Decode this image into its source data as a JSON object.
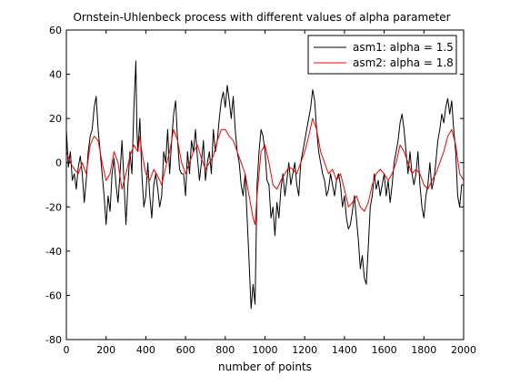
{
  "chart_data": {
    "type": "line",
    "title": "Ornstein-Uhlenbeck process with different values of alpha parameter",
    "xlabel": "number of points",
    "ylabel": "",
    "xlim": [
      0,
      2000
    ],
    "ylim": [
      -80,
      60
    ],
    "xticks": [
      0,
      200,
      400,
      600,
      800,
      1000,
      1200,
      1400,
      1600,
      1800,
      2000
    ],
    "yticks": [
      -80,
      -60,
      -40,
      -20,
      0,
      20,
      40,
      60
    ],
    "grid": false,
    "legend_position": "top-right",
    "series": [
      {
        "name": "asm1: alpha = 1.5",
        "color": "#000000",
        "points": [
          [
            0,
            15
          ],
          [
            10,
            -2
          ],
          [
            20,
            5
          ],
          [
            30,
            -8
          ],
          [
            40,
            -5
          ],
          [
            50,
            -12
          ],
          [
            60,
            -2
          ],
          [
            70,
            3
          ],
          [
            80,
            -5
          ],
          [
            90,
            -18
          ],
          [
            100,
            -8
          ],
          [
            110,
            5
          ],
          [
            120,
            12
          ],
          [
            130,
            15
          ],
          [
            140,
            25
          ],
          [
            150,
            30
          ],
          [
            160,
            15
          ],
          [
            170,
            5
          ],
          [
            180,
            -5
          ],
          [
            190,
            -15
          ],
          [
            200,
            -28
          ],
          [
            210,
            -15
          ],
          [
            220,
            -22
          ],
          [
            230,
            -5
          ],
          [
            240,
            2
          ],
          [
            250,
            -10
          ],
          [
            260,
            -18
          ],
          [
            270,
            -5
          ],
          [
            280,
            10
          ],
          [
            290,
            -8
          ],
          [
            300,
            -28
          ],
          [
            310,
            -10
          ],
          [
            320,
            5
          ],
          [
            330,
            -5
          ],
          [
            340,
            25
          ],
          [
            350,
            46
          ],
          [
            355,
            15
          ],
          [
            360,
            5
          ],
          [
            370,
            20
          ],
          [
            380,
            -5
          ],
          [
            390,
            -20
          ],
          [
            400,
            -15
          ],
          [
            410,
            0
          ],
          [
            420,
            -15
          ],
          [
            430,
            -25
          ],
          [
            440,
            -10
          ],
          [
            450,
            -5
          ],
          [
            460,
            -12
          ],
          [
            470,
            -20
          ],
          [
            480,
            -15
          ],
          [
            490,
            5
          ],
          [
            500,
            0
          ],
          [
            510,
            15
          ],
          [
            520,
            -5
          ],
          [
            530,
            10
          ],
          [
            540,
            22
          ],
          [
            550,
            28
          ],
          [
            560,
            10
          ],
          [
            570,
            -3
          ],
          [
            580,
            -5
          ],
          [
            590,
            -5
          ],
          [
            600,
            -15
          ],
          [
            610,
            5
          ],
          [
            620,
            -5
          ],
          [
            630,
            10
          ],
          [
            640,
            5
          ],
          [
            650,
            15
          ],
          [
            660,
            2
          ],
          [
            670,
            -8
          ],
          [
            680,
            0
          ],
          [
            690,
            10
          ],
          [
            700,
            -8
          ],
          [
            710,
            0
          ],
          [
            720,
            5
          ],
          [
            730,
            -5
          ],
          [
            740,
            15
          ],
          [
            750,
            5
          ],
          [
            760,
            10
          ],
          [
            770,
            20
          ],
          [
            780,
            28
          ],
          [
            790,
            32
          ],
          [
            800,
            25
          ],
          [
            810,
            35
          ],
          [
            820,
            28
          ],
          [
            830,
            20
          ],
          [
            840,
            30
          ],
          [
            850,
            15
          ],
          [
            860,
            5
          ],
          [
            870,
            0
          ],
          [
            880,
            -10
          ],
          [
            890,
            -15
          ],
          [
            900,
            -5
          ],
          [
            910,
            -25
          ],
          [
            920,
            -45
          ],
          [
            930,
            -66
          ],
          [
            940,
            -55
          ],
          [
            950,
            -64
          ],
          [
            960,
            -10
          ],
          [
            970,
            5
          ],
          [
            980,
            15
          ],
          [
            990,
            12
          ],
          [
            1000,
            5
          ],
          [
            1010,
            -8
          ],
          [
            1020,
            -10
          ],
          [
            1030,
            -25
          ],
          [
            1040,
            -20
          ],
          [
            1050,
            -33
          ],
          [
            1060,
            -18
          ],
          [
            1070,
            -25
          ],
          [
            1080,
            -12
          ],
          [
            1090,
            -5
          ],
          [
            1100,
            -15
          ],
          [
            1110,
            -8
          ],
          [
            1120,
            0
          ],
          [
            1130,
            -10
          ],
          [
            1140,
            -5
          ],
          [
            1150,
            0
          ],
          [
            1160,
            -10
          ],
          [
            1170,
            -15
          ],
          [
            1180,
            0
          ],
          [
            1190,
            5
          ],
          [
            1200,
            10
          ],
          [
            1210,
            15
          ],
          [
            1220,
            20
          ],
          [
            1230,
            25
          ],
          [
            1240,
            33
          ],
          [
            1250,
            28
          ],
          [
            1260,
            15
          ],
          [
            1270,
            5
          ],
          [
            1280,
            0
          ],
          [
            1290,
            -5
          ],
          [
            1300,
            -8
          ],
          [
            1310,
            -15
          ],
          [
            1320,
            -12
          ],
          [
            1330,
            -5
          ],
          [
            1340,
            -10
          ],
          [
            1350,
            -15
          ],
          [
            1360,
            -8
          ],
          [
            1370,
            -5
          ],
          [
            1380,
            -10
          ],
          [
            1390,
            -20
          ],
          [
            1400,
            -15
          ],
          [
            1410,
            -25
          ],
          [
            1420,
            -30
          ],
          [
            1430,
            -28
          ],
          [
            1440,
            -22
          ],
          [
            1450,
            -15
          ],
          [
            1460,
            -25
          ],
          [
            1470,
            -35
          ],
          [
            1480,
            -48
          ],
          [
            1490,
            -42
          ],
          [
            1500,
            -52
          ],
          [
            1510,
            -55
          ],
          [
            1520,
            -38
          ],
          [
            1530,
            -20
          ],
          [
            1540,
            -15
          ],
          [
            1550,
            -5
          ],
          [
            1560,
            -12
          ],
          [
            1570,
            -8
          ],
          [
            1580,
            -15
          ],
          [
            1590,
            -10
          ],
          [
            1600,
            -5
          ],
          [
            1610,
            -15
          ],
          [
            1620,
            -8
          ],
          [
            1630,
            -18
          ],
          [
            1640,
            -10
          ],
          [
            1650,
            0
          ],
          [
            1660,
            5
          ],
          [
            1670,
            10
          ],
          [
            1680,
            18
          ],
          [
            1690,
            22
          ],
          [
            1700,
            15
          ],
          [
            1710,
            5
          ],
          [
            1720,
            -5
          ],
          [
            1730,
            5
          ],
          [
            1740,
            -5
          ],
          [
            1750,
            -10
          ],
          [
            1760,
            -5
          ],
          [
            1770,
            5
          ],
          [
            1780,
            -10
          ],
          [
            1790,
            -20
          ],
          [
            1800,
            -25
          ],
          [
            1810,
            -15
          ],
          [
            1820,
            -10
          ],
          [
            1830,
            0
          ],
          [
            1840,
            -12
          ],
          [
            1850,
            -8
          ],
          [
            1860,
            0
          ],
          [
            1870,
            10
          ],
          [
            1880,
            15
          ],
          [
            1890,
            22
          ],
          [
            1900,
            18
          ],
          [
            1910,
            25
          ],
          [
            1920,
            29
          ],
          [
            1930,
            22
          ],
          [
            1940,
            28
          ],
          [
            1950,
            15
          ],
          [
            1960,
            5
          ],
          [
            1970,
            -15
          ],
          [
            1980,
            -20
          ],
          [
            1990,
            -10
          ],
          [
            2000,
            -10
          ]
        ]
      },
      {
        "name": "asm2: alpha = 1.8",
        "color": "#ff0000",
        "points": [
          [
            0,
            5
          ],
          [
            20,
            0
          ],
          [
            40,
            -3
          ],
          [
            60,
            -5
          ],
          [
            80,
            0
          ],
          [
            100,
            -5
          ],
          [
            120,
            8
          ],
          [
            140,
            12
          ],
          [
            160,
            10
          ],
          [
            180,
            0
          ],
          [
            200,
            -8
          ],
          [
            220,
            -5
          ],
          [
            240,
            5
          ],
          [
            260,
            0
          ],
          [
            280,
            -12
          ],
          [
            300,
            -5
          ],
          [
            320,
            3
          ],
          [
            340,
            8
          ],
          [
            360,
            5
          ],
          [
            370,
            12
          ],
          [
            380,
            5
          ],
          [
            400,
            -5
          ],
          [
            420,
            -8
          ],
          [
            440,
            -3
          ],
          [
            460,
            -6
          ],
          [
            480,
            -10
          ],
          [
            500,
            -2
          ],
          [
            520,
            5
          ],
          [
            540,
            15
          ],
          [
            560,
            10
          ],
          [
            580,
            0
          ],
          [
            600,
            -5
          ],
          [
            620,
            0
          ],
          [
            640,
            5
          ],
          [
            660,
            8
          ],
          [
            680,
            2
          ],
          [
            700,
            -3
          ],
          [
            720,
            0
          ],
          [
            740,
            3
          ],
          [
            760,
            10
          ],
          [
            780,
            15
          ],
          [
            800,
            15
          ],
          [
            820,
            12
          ],
          [
            840,
            10
          ],
          [
            860,
            5
          ],
          [
            880,
            0
          ],
          [
            900,
            -5
          ],
          [
            920,
            -15
          ],
          [
            940,
            -25
          ],
          [
            950,
            -28
          ],
          [
            960,
            -15
          ],
          [
            980,
            5
          ],
          [
            1000,
            8
          ],
          [
            1020,
            0
          ],
          [
            1040,
            -10
          ],
          [
            1060,
            -12
          ],
          [
            1080,
            -8
          ],
          [
            1100,
            -5
          ],
          [
            1120,
            -2
          ],
          [
            1140,
            -3
          ],
          [
            1160,
            -5
          ],
          [
            1180,
            0
          ],
          [
            1200,
            5
          ],
          [
            1220,
            12
          ],
          [
            1240,
            20
          ],
          [
            1260,
            15
          ],
          [
            1280,
            5
          ],
          [
            1300,
            0
          ],
          [
            1320,
            -5
          ],
          [
            1340,
            -3
          ],
          [
            1360,
            -8
          ],
          [
            1380,
            -5
          ],
          [
            1400,
            -12
          ],
          [
            1420,
            -20
          ],
          [
            1440,
            -18
          ],
          [
            1460,
            -15
          ],
          [
            1480,
            -20
          ],
          [
            1500,
            -22
          ],
          [
            1520,
            -18
          ],
          [
            1540,
            -10
          ],
          [
            1560,
            -5
          ],
          [
            1580,
            -3
          ],
          [
            1600,
            -5
          ],
          [
            1620,
            -8
          ],
          [
            1640,
            -5
          ],
          [
            1660,
            0
          ],
          [
            1680,
            8
          ],
          [
            1700,
            5
          ],
          [
            1720,
            0
          ],
          [
            1740,
            -5
          ],
          [
            1760,
            -3
          ],
          [
            1780,
            -5
          ],
          [
            1800,
            -10
          ],
          [
            1820,
            -12
          ],
          [
            1840,
            -8
          ],
          [
            1860,
            -5
          ],
          [
            1880,
            0
          ],
          [
            1900,
            5
          ],
          [
            1920,
            12
          ],
          [
            1940,
            15
          ],
          [
            1960,
            8
          ],
          [
            1980,
            -5
          ],
          [
            2000,
            -8
          ]
        ]
      }
    ]
  }
}
